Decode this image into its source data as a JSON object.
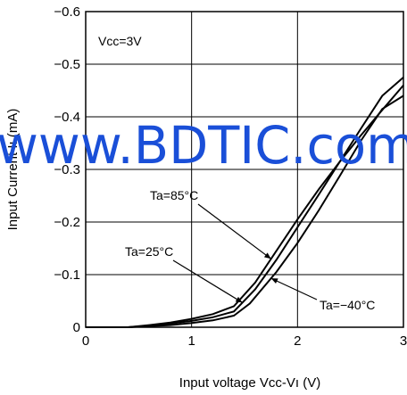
{
  "chart_data": {
    "type": "line",
    "title": "",
    "xlabel": "Input voltage  Vcc-Vı (V)",
    "ylabel": "Input Current Iı (mA)",
    "xlim": [
      0,
      3
    ],
    "ylim": [
      0,
      -0.6
    ],
    "y_axis_inverted": true,
    "grid": true,
    "x_ticks": [
      "0",
      "1",
      "2",
      "3"
    ],
    "y_ticks": [
      "0",
      "−0.1",
      "−0.2",
      "−0.3",
      "−0.4",
      "−0.5",
      "−0.6"
    ],
    "y_tick_values": [
      0,
      -0.1,
      -0.2,
      -0.3,
      -0.4,
      -0.5,
      -0.6
    ],
    "condition_label": "Vcc=3V",
    "series": [
      {
        "name": "Ta=85°C",
        "points": [
          [
            0,
            0
          ],
          [
            0.4,
            0
          ],
          [
            0.6,
            -0.004
          ],
          [
            0.8,
            -0.009
          ],
          [
            1.0,
            -0.016
          ],
          [
            1.2,
            -0.025
          ],
          [
            1.4,
            -0.04
          ],
          [
            1.6,
            -0.085
          ],
          [
            1.8,
            -0.145
          ],
          [
            2.0,
            -0.205
          ],
          [
            2.2,
            -0.262
          ],
          [
            2.4,
            -0.315
          ],
          [
            2.6,
            -0.365
          ],
          [
            2.8,
            -0.413
          ],
          [
            3.0,
            -0.46
          ]
        ]
      },
      {
        "name": "Ta=25°C",
        "points": [
          [
            0,
            0
          ],
          [
            0.4,
            0
          ],
          [
            0.6,
            -0.003
          ],
          [
            0.8,
            -0.007
          ],
          [
            1.0,
            -0.012
          ],
          [
            1.2,
            -0.019
          ],
          [
            1.4,
            -0.03
          ],
          [
            1.6,
            -0.072
          ],
          [
            1.8,
            -0.128
          ],
          [
            2.0,
            -0.19
          ],
          [
            2.2,
            -0.252
          ],
          [
            2.4,
            -0.315
          ],
          [
            2.6,
            -0.378
          ],
          [
            2.8,
            -0.44
          ],
          [
            3.0,
            -0.475
          ]
        ]
      },
      {
        "name": "Ta=−40°C",
        "points": [
          [
            0,
            0
          ],
          [
            0.4,
            0
          ],
          [
            0.6,
            -0.002
          ],
          [
            0.8,
            -0.004
          ],
          [
            1.0,
            -0.008
          ],
          [
            1.2,
            -0.013
          ],
          [
            1.4,
            -0.022
          ],
          [
            1.55,
            -0.045
          ],
          [
            1.8,
            -0.105
          ],
          [
            2.0,
            -0.16
          ],
          [
            2.2,
            -0.222
          ],
          [
            2.4,
            -0.288
          ],
          [
            2.6,
            -0.355
          ],
          [
            2.8,
            -0.415
          ],
          [
            3.0,
            -0.44
          ]
        ]
      }
    ],
    "annotations": [
      {
        "text": "Ta=85°C",
        "target_series": 0,
        "at_x": 1.75
      },
      {
        "text": "Ta=25°C",
        "target_series": 1,
        "at_x": 1.48
      },
      {
        "text": "Ta=−40°C",
        "target_series": 2,
        "at_x": 1.75
      }
    ]
  },
  "watermark": "www.BDTIC.com",
  "colors": {
    "line": "#000000",
    "grid": "#000000",
    "watermark": "#1a4fd8"
  }
}
